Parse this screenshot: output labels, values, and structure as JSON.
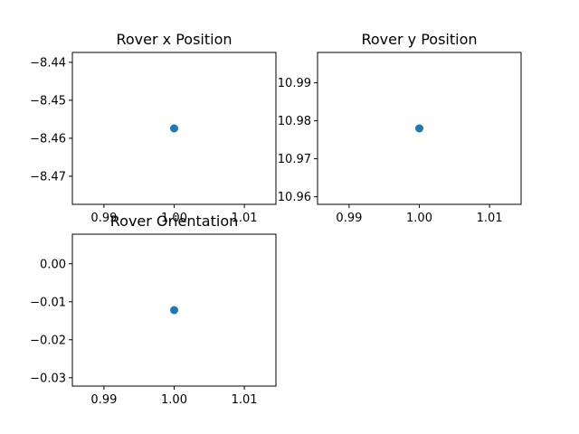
{
  "chart_data": [
    {
      "type": "scatter",
      "title": "Rover x Position",
      "x": [
        1.0
      ],
      "y": [
        -8.4574
      ],
      "xlim": [
        0.9855,
        1.0145
      ],
      "ylim": [
        -8.4774,
        -8.4374
      ],
      "xticks": [
        0.99,
        1.0,
        1.01
      ],
      "xtick_labels": [
        "0.99",
        "1.00",
        "1.01"
      ],
      "yticks": [
        -8.44,
        -8.45,
        -8.46,
        -8.47
      ],
      "ytick_labels": [
        "−8.44",
        "−8.45",
        "−8.46",
        "−8.47"
      ],
      "color": "#1f77b4",
      "grid": false
    },
    {
      "type": "scatter",
      "title": "Rover y Position",
      "x": [
        1.0
      ],
      "y": [
        10.978
      ],
      "xlim": [
        0.9855,
        1.0145
      ],
      "ylim": [
        10.958,
        10.998
      ],
      "xticks": [
        0.99,
        1.0,
        1.01
      ],
      "xtick_labels": [
        "0.99",
        "1.00",
        "1.01"
      ],
      "yticks": [
        10.99,
        10.98,
        10.97,
        10.96
      ],
      "ytick_labels": [
        "10.99",
        "10.98",
        "10.97",
        "10.96"
      ],
      "color": "#1f77b4",
      "grid": false
    },
    {
      "type": "scatter",
      "title": "Rover Orientation",
      "x": [
        1.0
      ],
      "y": [
        -0.0122
      ],
      "xlim": [
        0.9855,
        1.0145
      ],
      "ylim": [
        -0.0322,
        0.0078
      ],
      "xticks": [
        0.99,
        1.0,
        1.01
      ],
      "xtick_labels": [
        "0.99",
        "1.00",
        "1.01"
      ],
      "yticks": [
        0.0,
        -0.01,
        -0.02,
        -0.03
      ],
      "ytick_labels": [
        "0.00",
        "−0.01",
        "−0.02",
        "−0.03"
      ],
      "color": "#1f77b4",
      "grid": false
    }
  ]
}
